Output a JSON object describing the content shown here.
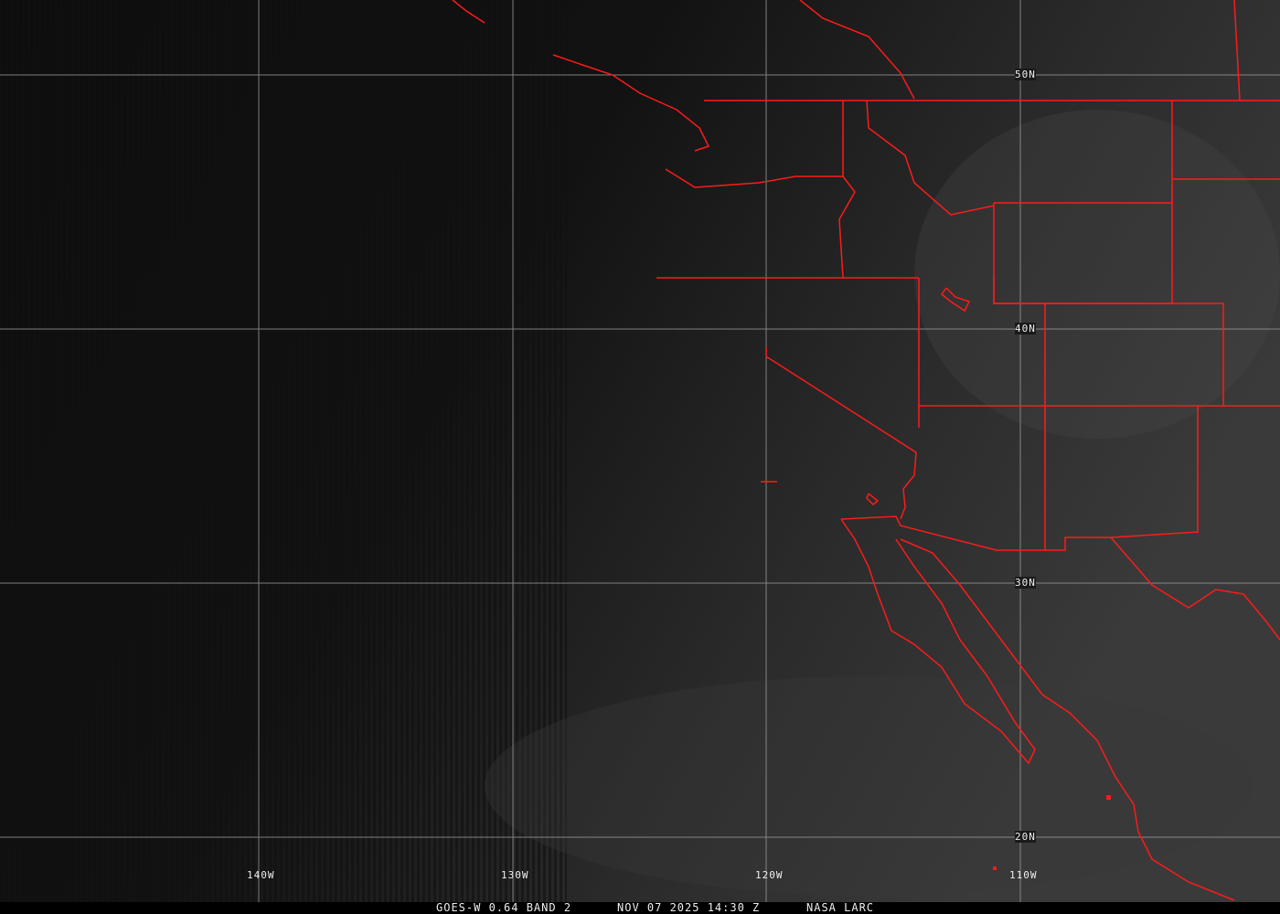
{
  "map": {
    "grid_labels": {
      "latitude": [
        "50N",
        "40N",
        "30N",
        "20N"
      ],
      "longitude": [
        "140W",
        "130W",
        "120W",
        "110W"
      ]
    },
    "colors": {
      "borders": "#ff1a1a",
      "grid": "#9a9a9a",
      "background": "#0b0b0b"
    }
  },
  "caption": {
    "product": "GOES-W 0.64 BAND 2",
    "datetime": "NOV 07 2025 14:30 Z",
    "source": "NASA LARC"
  }
}
